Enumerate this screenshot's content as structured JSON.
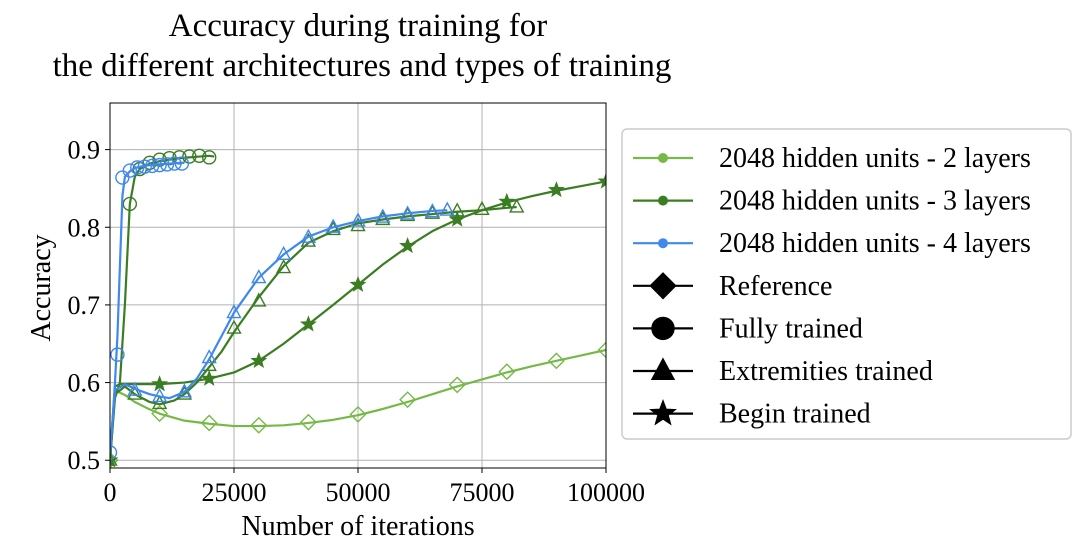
{
  "chart_data": {
    "type": "line",
    "title_lines": [
      "Accuracy during training for",
      "the different architectures and types of training"
    ],
    "xlabel": "Number of iterations",
    "ylabel": "Accuracy",
    "xlim": [
      0,
      100000
    ],
    "ylim": [
      0.49,
      0.96
    ],
    "xticks": [
      0,
      25000,
      50000,
      75000,
      100000
    ],
    "xtick_labels": [
      "0",
      "25000",
      "50000",
      "75000",
      "100000"
    ],
    "yticks": [
      0.5,
      0.6,
      0.7,
      0.8,
      0.9
    ],
    "ytick_labels": [
      "0.5",
      "0.6",
      "0.7",
      "0.8",
      "0.9"
    ],
    "grid": true,
    "legend_position": "outside right",
    "legend": [
      {
        "label": "2048 hidden units - 2 layers",
        "kind": "line",
        "color": "#76b947"
      },
      {
        "label": "2048 hidden units - 3 layers",
        "kind": "line",
        "color": "#3a7d22"
      },
      {
        "label": "2048 hidden units - 4 layers",
        "kind": "line",
        "color": "#3f88ee"
      },
      {
        "label": "Reference",
        "kind": "marker",
        "marker": "diamond"
      },
      {
        "label": "Fully trained",
        "kind": "marker",
        "marker": "circle"
      },
      {
        "label": "Extremities trained",
        "kind": "marker",
        "marker": "triangle"
      },
      {
        "label": "Begin trained",
        "kind": "marker",
        "marker": "star"
      }
    ],
    "series": [
      {
        "architecture": "2 layers",
        "training": "Reference",
        "color": "#76b947",
        "marker": "diamond",
        "x": [
          0,
          1000,
          3000,
          5000,
          7500,
          10000,
          15000,
          20000,
          25000,
          30000,
          35000,
          40000,
          45000,
          50000,
          55000,
          60000,
          65000,
          70000,
          75000,
          80000,
          85000,
          90000,
          95000,
          100000
        ],
        "y": [
          0.5,
          0.59,
          0.584,
          0.575,
          0.567,
          0.56,
          0.551,
          0.547,
          0.544,
          0.544,
          0.545,
          0.548,
          0.552,
          0.558,
          0.566,
          0.575,
          0.585,
          0.595,
          0.604,
          0.613,
          0.621,
          0.628,
          0.635,
          0.642
        ],
        "markers": [
          [
            0,
            0.5
          ],
          [
            10000,
            0.56
          ],
          [
            20000,
            0.548
          ],
          [
            30000,
            0.545
          ],
          [
            40000,
            0.549
          ],
          [
            50000,
            0.559
          ],
          [
            60000,
            0.578
          ],
          [
            70000,
            0.597
          ],
          [
            80000,
            0.614
          ],
          [
            90000,
            0.628
          ],
          [
            100000,
            0.642
          ]
        ]
      },
      {
        "architecture": "3 layers",
        "training": "Fully trained",
        "color": "#3a7d22",
        "marker": "circle",
        "x": [
          0,
          1000,
          2000,
          3000,
          4000,
          5000,
          6000,
          8000,
          10000,
          12000,
          14000,
          16000,
          18000,
          20000,
          21000
        ],
        "y": [
          0.5,
          0.58,
          0.6,
          0.7,
          0.83,
          0.865,
          0.875,
          0.882,
          0.885,
          0.887,
          0.889,
          0.89,
          0.891,
          0.892,
          0.891
        ],
        "markers": [
          [
            4000,
            0.83
          ],
          [
            6000,
            0.875
          ],
          [
            8000,
            0.883
          ],
          [
            10000,
            0.887
          ],
          [
            12000,
            0.889
          ],
          [
            14000,
            0.89
          ],
          [
            16000,
            0.891
          ],
          [
            18000,
            0.892
          ],
          [
            20000,
            0.89
          ]
        ]
      },
      {
        "architecture": "3 layers",
        "training": "Extremities trained",
        "color": "#3a7d22",
        "marker": "triangle",
        "x": [
          0,
          1000,
          3000,
          5000,
          8000,
          10000,
          13000,
          15000,
          17500,
          20000,
          22500,
          25000,
          30000,
          35000,
          40000,
          45000,
          50000,
          55000,
          60000,
          65000,
          70000,
          75000,
          80000,
          82000
        ],
        "y": [
          0.5,
          0.585,
          0.595,
          0.585,
          0.575,
          0.572,
          0.577,
          0.585,
          0.6,
          0.62,
          0.64,
          0.665,
          0.71,
          0.75,
          0.78,
          0.795,
          0.805,
          0.81,
          0.814,
          0.817,
          0.82,
          0.822,
          0.825,
          0.826
        ],
        "markers": [
          [
            0,
            0.5
          ],
          [
            5000,
            0.585
          ],
          [
            10000,
            0.573
          ],
          [
            15000,
            0.585
          ],
          [
            20000,
            0.622
          ],
          [
            25000,
            0.67
          ],
          [
            30000,
            0.705
          ],
          [
            35000,
            0.748
          ],
          [
            40000,
            0.782
          ],
          [
            45000,
            0.797
          ],
          [
            50000,
            0.802
          ],
          [
            55000,
            0.81
          ],
          [
            60000,
            0.815
          ],
          [
            65000,
            0.818
          ],
          [
            70000,
            0.821
          ],
          [
            75000,
            0.823
          ],
          [
            82000,
            0.826
          ]
        ]
      },
      {
        "architecture": "3 layers",
        "training": "Begin trained",
        "color": "#3a7d22",
        "marker": "star",
        "x": [
          0,
          1000,
          2000,
          5000,
          10000,
          15000,
          20000,
          25000,
          30000,
          35000,
          40000,
          45000,
          50000,
          55000,
          60000,
          65000,
          70000,
          75000,
          80000,
          85000,
          90000,
          95000,
          100000
        ],
        "y": [
          0.5,
          0.595,
          0.598,
          0.598,
          0.598,
          0.6,
          0.605,
          0.613,
          0.628,
          0.65,
          0.675,
          0.7,
          0.726,
          0.752,
          0.775,
          0.795,
          0.81,
          0.822,
          0.832,
          0.84,
          0.847,
          0.853,
          0.859
        ],
        "markers": [
          [
            0,
            0.5
          ],
          [
            10000,
            0.598
          ],
          [
            20000,
            0.605
          ],
          [
            30000,
            0.628
          ],
          [
            40000,
            0.675
          ],
          [
            50000,
            0.726
          ],
          [
            60000,
            0.776
          ],
          [
            70000,
            0.81
          ],
          [
            80000,
            0.833
          ],
          [
            90000,
            0.848
          ],
          [
            100000,
            0.859
          ]
        ]
      },
      {
        "architecture": "4 layers",
        "training": "Fully trained",
        "color": "#3f88ee",
        "marker": "circle",
        "x": [
          0,
          500,
          1000,
          1500,
          2000,
          2500,
          3000,
          4000,
          5000,
          6000,
          8000,
          10000,
          12000,
          14000,
          15000
        ],
        "y": [
          0.51,
          0.55,
          0.6,
          0.66,
          0.75,
          0.84,
          0.865,
          0.872,
          0.876,
          0.878,
          0.88,
          0.881,
          0.882,
          0.883,
          0.883
        ],
        "markers": [
          [
            0,
            0.51
          ],
          [
            1500,
            0.636
          ],
          [
            2500,
            0.864
          ],
          [
            4000,
            0.873
          ],
          [
            5500,
            0.877
          ],
          [
            7000,
            0.878
          ],
          [
            8500,
            0.879
          ],
          [
            10000,
            0.88
          ],
          [
            11500,
            0.881
          ],
          [
            13000,
            0.882
          ],
          [
            14500,
            0.882
          ]
        ]
      },
      {
        "architecture": "4 layers",
        "training": "Extremities trained",
        "color": "#3f88ee",
        "marker": "triangle",
        "x": [
          0,
          1000,
          3000,
          5000,
          8000,
          10000,
          12000,
          15000,
          17500,
          20000,
          22500,
          25000,
          30000,
          35000,
          40000,
          45000,
          50000,
          55000,
          60000,
          65000,
          68000
        ],
        "y": [
          0.51,
          0.59,
          0.598,
          0.592,
          0.585,
          0.582,
          0.58,
          0.588,
          0.605,
          0.63,
          0.66,
          0.69,
          0.735,
          0.765,
          0.788,
          0.8,
          0.808,
          0.814,
          0.818,
          0.821,
          0.822
        ],
        "markers": [
          [
            5000,
            0.59
          ],
          [
            10000,
            0.582
          ],
          [
            15000,
            0.588
          ],
          [
            20000,
            0.632
          ],
          [
            25000,
            0.69
          ],
          [
            30000,
            0.735
          ],
          [
            35000,
            0.765
          ],
          [
            40000,
            0.787
          ],
          [
            45000,
            0.8
          ],
          [
            50000,
            0.808
          ],
          [
            55000,
            0.813
          ],
          [
            60000,
            0.817
          ],
          [
            65000,
            0.82
          ],
          [
            68000,
            0.822
          ]
        ]
      }
    ]
  }
}
